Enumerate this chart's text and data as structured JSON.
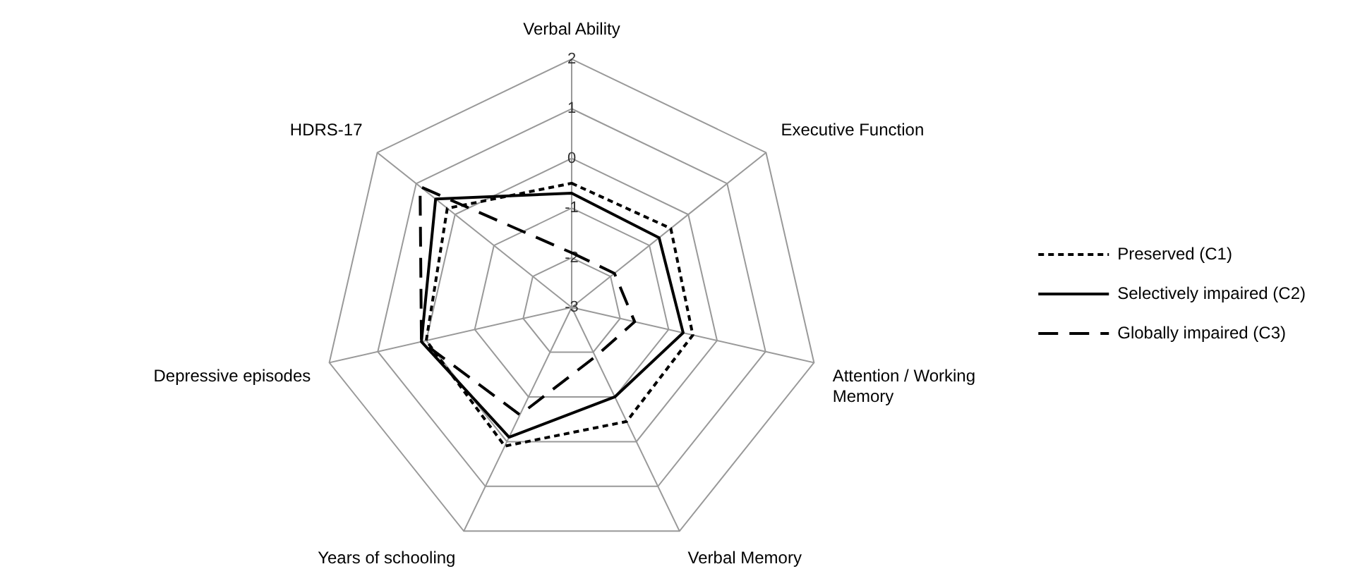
{
  "chart_data": {
    "type": "radar",
    "categories": [
      "Verbal Ability",
      "Executive Function",
      "Attention / Working Memory",
      "Verbal Memory",
      "Years of schooling",
      "Depressive episodes",
      "HDRS-17"
    ],
    "series": [
      {
        "name": "Preserved (C1)",
        "color": "#000000",
        "line_style": "dotted",
        "values": [
          -0.5,
          -0.45,
          -0.5,
          -0.45,
          0.1,
          0,
          0.2
        ]
      },
      {
        "name": "Selectively impaired (C2)",
        "color": "#000000",
        "line_style": "solid",
        "values": [
          -0.7,
          -0.75,
          -0.7,
          -1.0,
          -0.1,
          0.1,
          0.5
        ]
      },
      {
        "name": "Globally impaired (C3)",
        "color": "#000000",
        "line_style": "dashed",
        "values": [
          -1.9,
          -1.9,
          -1.7,
          -1.9,
          -0.6,
          0.1,
          0.9
        ]
      }
    ],
    "ylim": [
      -3,
      2
    ],
    "yticks": [
      -3,
      -2,
      -1,
      0,
      1,
      2
    ],
    "grid": true,
    "legend": "right",
    "marker": "none"
  }
}
